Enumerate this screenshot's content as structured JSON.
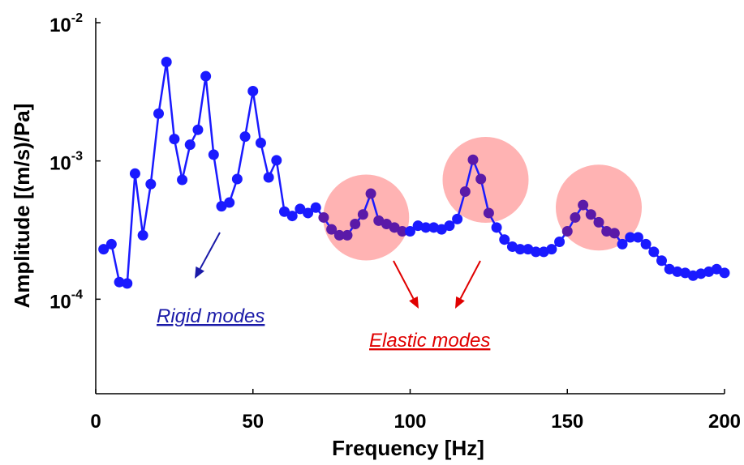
{
  "chart_data": {
    "type": "line",
    "xlabel": "Frequency [Hz]",
    "ylabel": "Amplitude [(m/s)/Pa]",
    "xlim": [
      0,
      200
    ],
    "ylim_log10": [
      -5,
      -2
    ],
    "y_scale": "log",
    "grid": false,
    "x_ticks": [
      {
        "value": 0,
        "label": "0"
      },
      {
        "value": 50,
        "label": "50"
      },
      {
        "value": 100,
        "label": "100"
      },
      {
        "value": 150,
        "label": "150"
      },
      {
        "value": 200,
        "label": "200"
      }
    ],
    "y_ticks": [
      {
        "exp": -4,
        "label": "10",
        "sup": "-4"
      },
      {
        "exp": -3,
        "label": "10",
        "sup": "-3"
      },
      {
        "exp": -2,
        "label": "10",
        "sup": "-2"
      }
    ],
    "series_color": "#1a1aff",
    "highlight_point_color": "#5a1aa8",
    "series": [
      {
        "x": [
          2.5,
          5,
          7.5,
          10,
          12.5,
          15,
          17.5,
          20,
          22.5,
          25,
          27.5,
          30,
          32.5,
          35,
          37.5,
          40,
          42.5,
          45,
          47.5,
          50,
          52.5,
          55,
          57.5,
          60,
          62.5,
          65,
          67.5,
          70,
          72.5,
          75,
          77.5,
          80,
          82.5,
          85,
          87.5,
          90,
          92.5,
          95,
          97.5,
          100,
          102.5,
          105,
          107.5,
          110,
          112.5,
          115,
          117.5,
          120,
          122.5,
          125,
          127.5,
          130,
          132.5,
          135,
          137.5,
          140,
          142.5,
          145,
          147.5,
          150,
          152.5,
          155,
          157.5,
          160,
          162.5,
          165,
          167.5,
          170,
          172.5,
          175,
          177.5,
          180,
          182.5,
          185,
          187.5,
          190,
          192.5,
          195,
          197.5,
          200
        ],
        "y": [
          0.00023,
          0.00025,
          0.000133,
          0.00013,
          0.00081,
          0.00029,
          0.00068,
          0.0022,
          0.0052,
          0.00144,
          0.00073,
          0.00131,
          0.00168,
          0.0041,
          0.00111,
          0.00047,
          0.0005,
          0.00074,
          0.0015,
          0.0032,
          0.00135,
          0.00076,
          0.00101,
          0.00043,
          0.0004,
          0.00045,
          0.00042,
          0.00046,
          0.00039,
          0.00032,
          0.00029,
          0.00029,
          0.00035,
          0.00041,
          0.00058,
          0.00037,
          0.00035,
          0.00033,
          0.00031,
          0.00031,
          0.00034,
          0.00033,
          0.00033,
          0.00032,
          0.00034,
          0.00038,
          0.0006,
          0.00102,
          0.00074,
          0.00042,
          0.00033,
          0.00027,
          0.00024,
          0.00023,
          0.00023,
          0.00022,
          0.00022,
          0.00023,
          0.00026,
          0.00031,
          0.00039,
          0.00048,
          0.00041,
          0.00036,
          0.00031,
          0.0003,
          0.00025,
          0.00028,
          0.00028,
          0.00025,
          0.00022,
          0.00019,
          0.000165,
          0.000158,
          0.000155,
          0.000148,
          0.000153,
          0.000158,
          0.000165,
          0.000155
        ]
      }
    ],
    "highlight_regions": [
      {
        "x": 86,
        "y": 0.00039,
        "color": "#ff9999"
      },
      {
        "x": 124,
        "y": 0.00073,
        "color": "#ff9999"
      },
      {
        "x": 160,
        "y": 0.00046,
        "color": "#ff9999"
      }
    ],
    "annotations": [
      {
        "text": "Rigid modes",
        "color": "#1a1aa8"
      },
      {
        "text": "Elastic modes",
        "color": "#e00000"
      }
    ]
  }
}
